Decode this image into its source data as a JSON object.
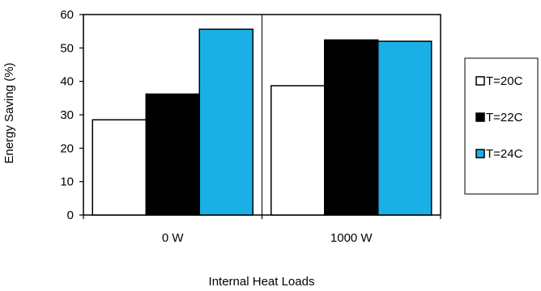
{
  "chart_data": {
    "type": "bar",
    "categories": [
      "0 W",
      "1000 W"
    ],
    "series": [
      {
        "name": "T=20C",
        "values": [
          28.5,
          38.7
        ],
        "color": "#ffffff"
      },
      {
        "name": "T=22C",
        "values": [
          36.2,
          52.4
        ],
        "color": "#000000"
      },
      {
        "name": "T=24C",
        "values": [
          55.6,
          52.0
        ],
        "color": "#1ab0e6"
      }
    ],
    "xlabel": "Internal Heat Loads",
    "ylabel": "Energy Saving (%)",
    "ylim": [
      0,
      60
    ],
    "yticks": [
      0,
      10,
      20,
      30,
      40,
      50,
      60
    ],
    "grid": false,
    "legend_position": "right"
  }
}
